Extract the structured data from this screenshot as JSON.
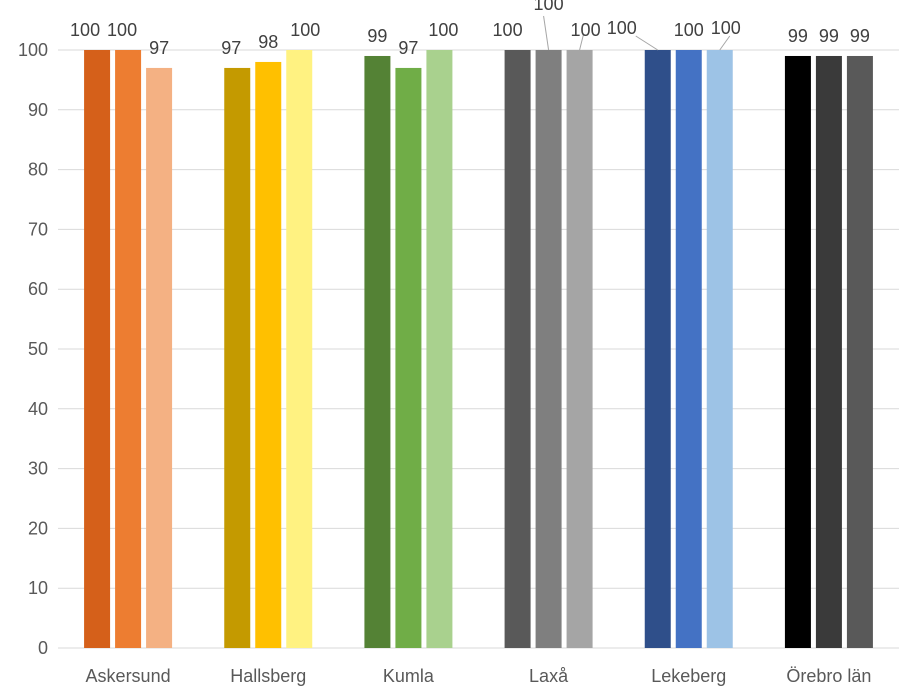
{
  "chart_data": {
    "type": "bar",
    "title": "",
    "xlabel": "",
    "ylabel": "",
    "ylim": [
      0,
      100
    ],
    "yticks": [
      0,
      10,
      20,
      30,
      40,
      50,
      60,
      70,
      80,
      90,
      100
    ],
    "grid": true,
    "legend": "none",
    "categories": [
      "Askersund",
      "Hallsberg",
      "Kumla",
      "Laxå",
      "Lekeberg",
      "Örebro län"
    ],
    "groups": [
      {
        "category": "Askersund",
        "values": [
          100,
          100,
          97
        ],
        "colors": [
          "#D5601A",
          "#ED7D31",
          "#F4B183"
        ]
      },
      {
        "category": "Hallsberg",
        "values": [
          97,
          98,
          100
        ],
        "colors": [
          "#C49A00",
          "#FFC000",
          "#FFF281"
        ]
      },
      {
        "category": "Kumla",
        "values": [
          99,
          97,
          100
        ],
        "colors": [
          "#548235",
          "#70AD47",
          "#A9D18E"
        ]
      },
      {
        "category": "Laxå",
        "values": [
          100,
          100,
          100
        ],
        "colors": [
          "#595959",
          "#7F7F7F",
          "#A5A5A5"
        ]
      },
      {
        "category": "Lekeberg",
        "values": [
          100,
          100,
          100
        ],
        "colors": [
          "#2F4F8A",
          "#4472C4",
          "#9DC3E6"
        ]
      },
      {
        "category": "Örebro län",
        "values": [
          99,
          99,
          99
        ],
        "colors": [
          "#000000",
          "#3A3A3A",
          "#595959"
        ]
      }
    ],
    "data_labels": [
      [
        "100",
        "100",
        "97"
      ],
      [
        "97",
        "98",
        "100"
      ],
      [
        "99",
        "97",
        "100"
      ],
      [
        "100",
        "100",
        "100"
      ],
      [
        "100",
        "100",
        "100"
      ],
      [
        "99",
        "99",
        "99"
      ]
    ]
  }
}
